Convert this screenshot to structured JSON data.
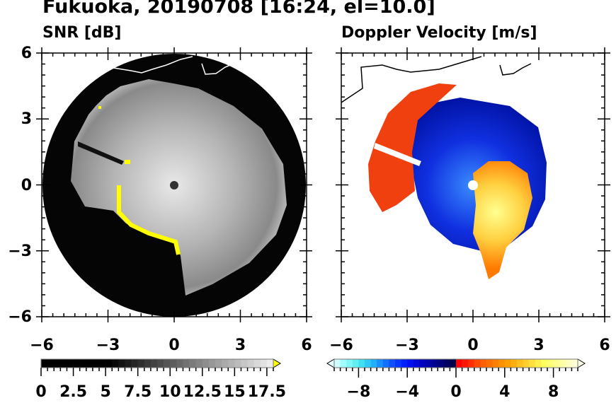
{
  "title": "Fukuoka, 20190708 [16:24, el=10.0]",
  "chart_data": [
    {
      "type": "heatmap",
      "subtitle": "SNR [dB]",
      "xlim": [
        -6,
        6
      ],
      "ylim": [
        -6,
        6
      ],
      "xticks": [
        "−6",
        "−3",
        "0",
        "3",
        "6"
      ],
      "yticks": [
        "6",
        "3",
        "0",
        "−3",
        "−6"
      ],
      "colorbar": {
        "min": 0,
        "max": 18,
        "step": 0.5,
        "ticks": [
          "0",
          "2.5",
          "5",
          "7.5",
          "10",
          "12.5",
          "15",
          "17.5"
        ],
        "over_color": "#ffff00"
      }
    },
    {
      "type": "heatmap",
      "subtitle": "Doppler Velocity [m/s]",
      "xlim": [
        -6,
        6
      ],
      "ylim": [
        -6,
        6
      ],
      "xticks": [
        "−6",
        "−3",
        "0",
        "3",
        "6"
      ],
      "colorbar": {
        "min": -10,
        "max": 10,
        "step": 0.5,
        "ticks": [
          "−8",
          "−4",
          "0",
          "4",
          "8"
        ]
      }
    }
  ]
}
